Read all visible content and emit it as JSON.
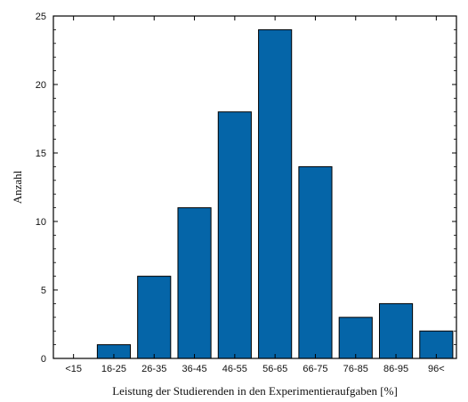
{
  "chart_data": {
    "type": "bar",
    "title": "",
    "xlabel": "Leistung der Studierenden in den Experimentieraufgaben [%]",
    "ylabel": "Anzahl",
    "categories": [
      "<15",
      "16-25",
      "26-35",
      "36-45",
      "46-55",
      "56-65",
      "66-75",
      "76-85",
      "86-95",
      "96<"
    ],
    "values": [
      0,
      1,
      6,
      11,
      18,
      24,
      14,
      3,
      4,
      2
    ],
    "ylim": [
      0,
      25
    ],
    "yticks": [
      "0",
      "5",
      "10",
      "15",
      "20",
      "25"
    ],
    "grid": false,
    "bar_color": "#0565A8"
  }
}
